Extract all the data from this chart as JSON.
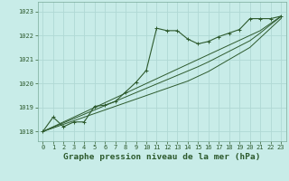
{
  "title": "Graphe pression niveau de la mer (hPa)",
  "bg_color": "#c8ece8",
  "grid_color": "#b0d8d4",
  "line_color": "#2d5a2d",
  "x_ticks": [
    0,
    1,
    2,
    3,
    4,
    5,
    6,
    7,
    8,
    9,
    10,
    11,
    12,
    13,
    14,
    15,
    16,
    17,
    18,
    19,
    20,
    21,
    22,
    23
  ],
  "y_ticks": [
    1018,
    1019,
    1020,
    1021,
    1022,
    1023
  ],
  "ylim": [
    1017.6,
    1023.4
  ],
  "xlim": [
    -0.5,
    23.5
  ],
  "series_main": [
    1018.0,
    1018.6,
    1018.2,
    1018.4,
    1018.4,
    1019.05,
    1019.1,
    1019.25,
    1019.65,
    1020.05,
    1020.55,
    1022.3,
    1022.2,
    1022.2,
    1021.85,
    1021.65,
    1021.75,
    1021.95,
    1022.1,
    1022.25,
    1022.7,
    1022.7,
    1022.7,
    1022.8
  ],
  "series_smooth": [
    [
      1018.0,
      1018.15,
      1018.3,
      1018.45,
      1018.6,
      1018.75,
      1018.9,
      1019.05,
      1019.2,
      1019.35,
      1019.5,
      1019.65,
      1019.8,
      1019.95,
      1020.1,
      1020.3,
      1020.5,
      1020.75,
      1021.0,
      1021.25,
      1021.5,
      1021.9,
      1022.3,
      1022.7
    ],
    [
      1018.0,
      1018.18,
      1018.36,
      1018.54,
      1018.72,
      1018.9,
      1019.08,
      1019.26,
      1019.44,
      1019.62,
      1019.8,
      1019.98,
      1020.16,
      1020.34,
      1020.52,
      1020.7,
      1020.9,
      1021.12,
      1021.34,
      1021.56,
      1021.78,
      1022.1,
      1022.45,
      1022.78
    ],
    [
      1018.0,
      1018.2,
      1018.4,
      1018.6,
      1018.8,
      1019.0,
      1019.2,
      1019.4,
      1019.6,
      1019.8,
      1020.0,
      1020.2,
      1020.4,
      1020.6,
      1020.8,
      1021.0,
      1021.2,
      1021.4,
      1021.6,
      1021.8,
      1022.0,
      1022.2,
      1022.5,
      1022.8
    ]
  ],
  "title_fontsize": 6.8,
  "tick_fontsize": 5.0
}
